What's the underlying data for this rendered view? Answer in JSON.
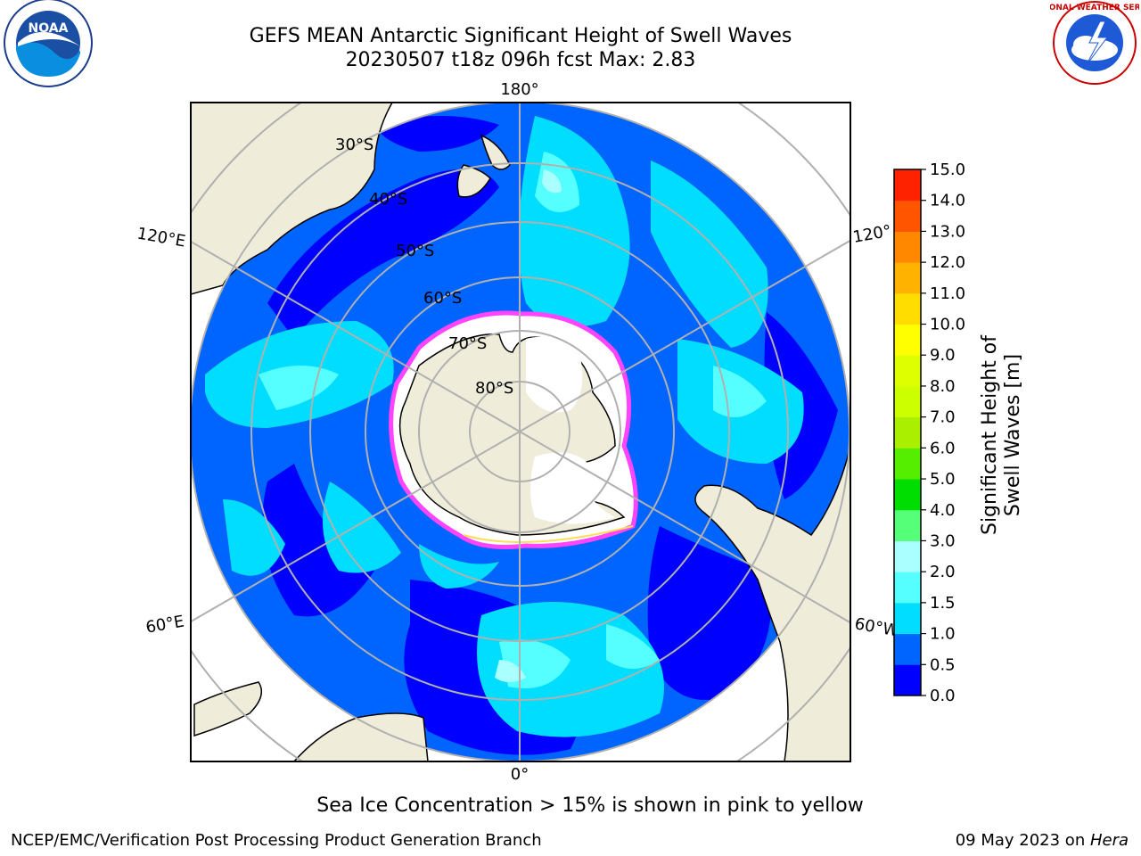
{
  "title": {
    "line1": "GEFS MEAN Antarctic Significant Height of Swell Waves",
    "line2": "20230507 t18z 096h fcst   Max: 2.83"
  },
  "logos": {
    "left": "NOAA",
    "right": "NATIONAL WEATHER SERVICE"
  },
  "map": {
    "projection": "south polar stereographic",
    "longitude_labels": {
      "top": "180°",
      "bottom": "0°",
      "upper_left": "120°E",
      "upper_right": "120°",
      "lower_left": "60°E",
      "lower_right": "60°W"
    },
    "latitude_labels": [
      "30°S",
      "40°S",
      "50°S",
      "60°S",
      "70°S",
      "80°S"
    ],
    "colors": {
      "land": "#efedd9",
      "ice": "#ffffff",
      "grid": "#b0b0b0",
      "ice_edge": "#ff44ff"
    }
  },
  "chart_data": {
    "type": "heatmap",
    "title": "GEFS MEAN Antarctic Significant Height of Swell Waves",
    "max": 2.83,
    "colorbar": {
      "label": "Significant Height of Swell Waves [m]",
      "ticks": [
        "0.0",
        "0.5",
        "1.0",
        "1.5",
        "2.0",
        "3.0",
        "4.0",
        "5.0",
        "6.0",
        "7.0",
        "8.0",
        "9.0",
        "10.0",
        "11.0",
        "12.0",
        "13.0",
        "14.0",
        "15.0"
      ],
      "colors": [
        "#0000ff",
        "#0064ff",
        "#00ddff",
        "#55ffff",
        "#aaffff",
        "#55ff77",
        "#00dd00",
        "#55ee00",
        "#aaee00",
        "#ccff00",
        "#ddff00",
        "#ffff00",
        "#ffdd00",
        "#ffb300",
        "#ff8800",
        "#ff5500",
        "#ff2200"
      ]
    }
  },
  "note": "Sea Ice Concentration > 15% is shown in pink to yellow",
  "footer": {
    "left": "NCEP/EMC/Verification Post Processing Product Generation Branch",
    "right_prefix": "09 May 2023 on ",
    "right_host": "Hera"
  }
}
